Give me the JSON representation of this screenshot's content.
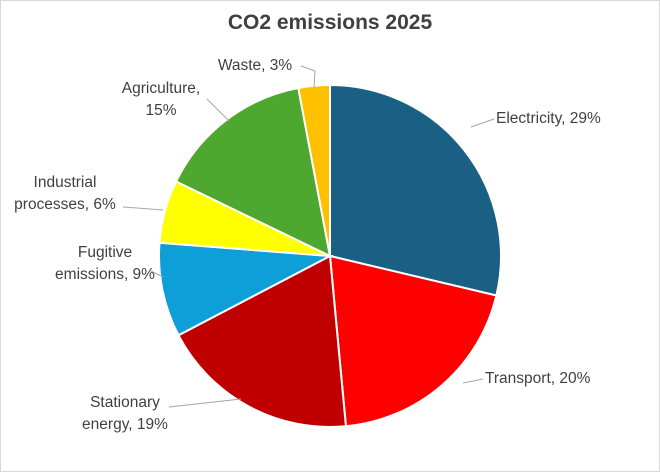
{
  "chart_data": {
    "type": "pie",
    "title": "CO2 emissions 2025",
    "slices": [
      {
        "name": "Electricity",
        "value": 29,
        "label_lines": [
          "Electricity, 29%"
        ],
        "color": "#1a5f84"
      },
      {
        "name": "Transport",
        "value": 20,
        "label_lines": [
          "Transport, 20%"
        ],
        "color": "#ff0000"
      },
      {
        "name": "Stationary energy",
        "value": 19,
        "label_lines": [
          "Stationary",
          "energy, 19%"
        ],
        "color": "#c00000"
      },
      {
        "name": "Fugitive emissions",
        "value": 9,
        "label_lines": [
          "Fugitive",
          "emissions, 9%"
        ],
        "color": "#0f9fd8"
      },
      {
        "name": "Industrial processes",
        "value": 6,
        "label_lines": [
          "Industrial",
          "processes, 6%"
        ],
        "color": "#ffff00"
      },
      {
        "name": "Agriculture",
        "value": 15,
        "label_lines": [
          "Agriculture,",
          "15%"
        ],
        "color": "#4ea72e"
      },
      {
        "name": "Waste",
        "value": 3,
        "label_lines": [
          "Waste, 3%"
        ],
        "color": "#ffc000"
      }
    ],
    "legend": "none",
    "data_labels": "outside with leader lines"
  }
}
